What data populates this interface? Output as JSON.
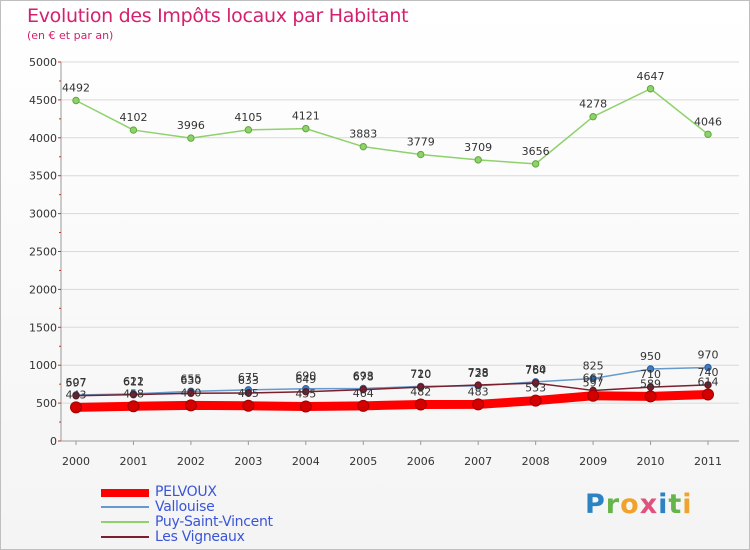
{
  "chart_data": {
    "type": "line",
    "title": "Evolution des Impôts locaux par Habitant",
    "subtitle": "(en € et par an)",
    "xlabel": "",
    "ylabel": "",
    "ylim": [
      0,
      5000
    ],
    "yticks": [
      0,
      500,
      1000,
      1500,
      2000,
      2500,
      3000,
      3500,
      4000,
      4500,
      5000
    ],
    "categories": [
      "2000",
      "2001",
      "2002",
      "2003",
      "2004",
      "2005",
      "2006",
      "2007",
      "2008",
      "2009",
      "2010",
      "2011"
    ],
    "series": [
      {
        "name": "Puy-Saint-Vincent",
        "color": "#8fd16b",
        "values": [
          4492,
          4102,
          3996,
          4105,
          4121,
          3883,
          3779,
          3709,
          3656,
          4278,
          4647,
          4046
        ]
      },
      {
        "name": "Vallouise",
        "color": "#6699cc",
        "values": [
          607,
          622,
          655,
          675,
          690,
          693,
          720,
          728,
          780,
          825,
          950,
          970
        ]
      },
      {
        "name": "Les Vigneaux",
        "color": "#7a1f2e",
        "values": [
          597,
          611,
          630,
          633,
          649,
          678,
          710,
          738,
          764,
          667,
          710,
          740
        ]
      },
      {
        "name": "PELVOUX",
        "color": "#ff0000",
        "values": [
          443,
          458,
          470,
          465,
          455,
          464,
          482,
          483,
          533,
          597,
          589,
          614
        ]
      }
    ]
  },
  "legend": [
    {
      "label": "PELVOUX",
      "color": "#ff0000"
    },
    {
      "label": "Vallouise",
      "color": "#6699cc"
    },
    {
      "label": "Puy-Saint-Vincent",
      "color": "#8fd16b"
    },
    {
      "label": "Les Vigneaux",
      "color": "#7a1f2e"
    }
  ],
  "branding": {
    "logo_text": "Proxiti"
  }
}
